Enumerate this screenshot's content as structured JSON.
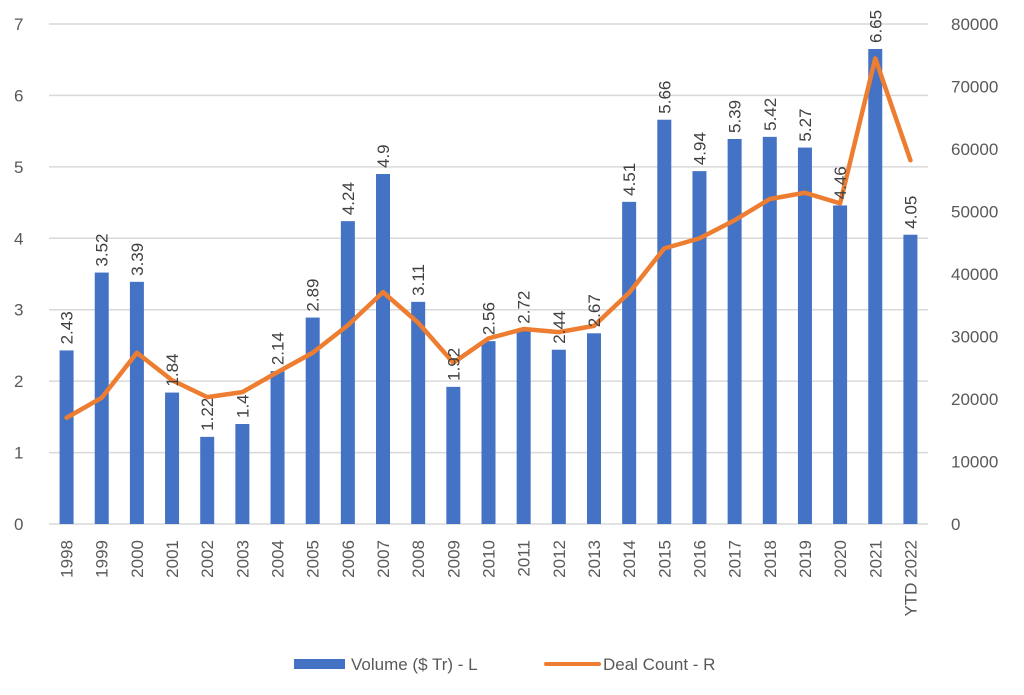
{
  "chart_data": {
    "type": "bar+line",
    "title": "",
    "categories": [
      "1998",
      "1999",
      "2000",
      "2001",
      "2002",
      "2003",
      "2004",
      "2005",
      "2006",
      "2007",
      "2008",
      "2009",
      "2010",
      "2011",
      "2012",
      "2013",
      "2014",
      "2015",
      "2016",
      "2017",
      "2018",
      "2019",
      "2020",
      "2021",
      "YTD 2022"
    ],
    "series": [
      {
        "name": "Volume ($ Tr) - L",
        "type": "bar",
        "axis": "left",
        "color": "#4472C4",
        "values": [
          2.43,
          3.52,
          3.39,
          1.84,
          1.22,
          1.4,
          2.14,
          2.89,
          4.24,
          4.9,
          3.11,
          1.92,
          2.56,
          2.72,
          2.44,
          2.67,
          4.51,
          5.66,
          4.94,
          5.39,
          5.42,
          5.27,
          4.46,
          6.65,
          4.05
        ],
        "labels": [
          "2.43",
          "3.52",
          "3.39",
          "1.84",
          "1.22",
          "1.4",
          "2.14",
          "2.89",
          "4.24",
          "4.9",
          "3.11",
          "1.92",
          "2.56",
          "2.72",
          "2.44",
          "2.67",
          "4.51",
          "5.66",
          "4.94",
          "5.39",
          "5.42",
          "5.27",
          "4.46",
          "6.65",
          "4.05"
        ]
      },
      {
        "name": "Deal Count - R",
        "type": "line",
        "axis": "right",
        "color": "#ED7D31",
        "values": [
          17000,
          20200,
          27400,
          23000,
          20300,
          21100,
          24300,
          27400,
          31800,
          37100,
          32200,
          25800,
          29700,
          31200,
          30700,
          31700,
          37000,
          44100,
          45700,
          48600,
          52000,
          53000,
          51300,
          74500,
          58200
        ]
      }
    ],
    "y_left": {
      "label": "",
      "range": [
        0,
        7
      ],
      "ticks": [
        "0",
        "1",
        "2",
        "3",
        "4",
        "5",
        "6",
        "7"
      ]
    },
    "y_right": {
      "label": "",
      "range": [
        0,
        80000
      ],
      "ticks": [
        "0",
        "10000",
        "20000",
        "30000",
        "40000",
        "50000",
        "60000",
        "70000",
        "80000"
      ]
    },
    "xlabel": "",
    "grid": true,
    "legend": {
      "position": "bottom",
      "entries": [
        "Volume ($ Tr) - L",
        "Deal Count - R"
      ]
    }
  }
}
